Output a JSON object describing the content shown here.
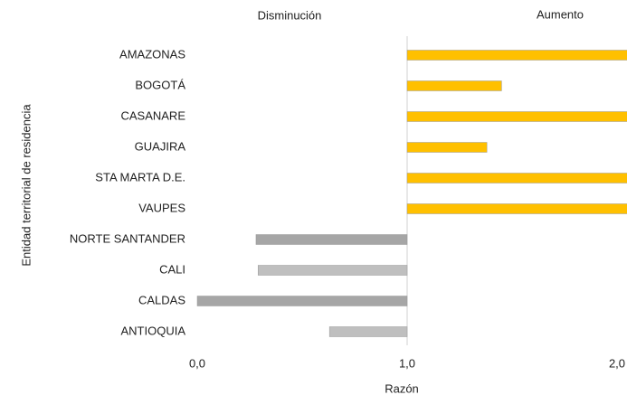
{
  "chart_data": {
    "type": "hbar",
    "x_label": "Razón",
    "y_label": "Entidad territorial de residencia",
    "annotations": [
      "Disminución",
      "Aumento"
    ],
    "categories": [
      "AMAZONAS",
      "BOGOTÁ",
      "CASANARE",
      "GUAJIRA",
      "STA MARTA D.E.",
      "VAUPES",
      "NORTE SANTANDER",
      "CALI",
      "CALDAS",
      "ANTIOQUIA"
    ],
    "values": [
      2.05,
      1.45,
      2.05,
      1.38,
      2.05,
      2.05,
      0.28,
      0.29,
      0.0,
      0.63
    ],
    "colors": [
      "#ffc000",
      "#ffc000",
      "#ffc000",
      "#ffc000",
      "#ffc000",
      "#ffc000",
      "#a6a6a6",
      "#bfbfbf",
      "#a6a6a6",
      "#bfbfbf"
    ],
    "baseline": 1,
    "xlim": [
      0,
      2
    ],
    "xticks": [
      {
        "value": 0,
        "label": "0,0"
      },
      {
        "value": 1,
        "label": "1,0"
      },
      {
        "value": 2,
        "label": "2,0"
      }
    ]
  }
}
